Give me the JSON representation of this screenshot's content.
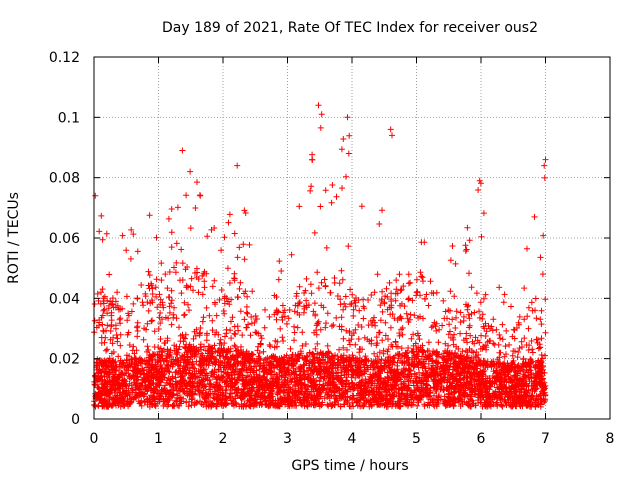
{
  "chart_data": {
    "type": "scatter",
    "title": "Day 189 of 2021, Rate Of TEC Index for receiver ous2",
    "xlabel": "GPS time / hours",
    "ylabel": "ROTI / TECUs",
    "xlim": [
      0,
      8
    ],
    "ylim": [
      0,
      0.12
    ],
    "x_ticks": [
      "0",
      "1",
      "2",
      "3",
      "4",
      "5",
      "6",
      "7",
      "8"
    ],
    "y_ticks": [
      "0",
      "0.02",
      "0.04",
      "0.06",
      "0.08",
      "0.1",
      "0.12"
    ],
    "grid": true,
    "marker": "+",
    "color": "#ff0000",
    "data_extent_x": [
      0,
      7.0
    ],
    "density_profile": [
      {
        "x": 0.0,
        "base": 0.012,
        "spread": 0.03,
        "max": 0.074
      },
      {
        "x": 0.5,
        "base": 0.012,
        "spread": 0.02,
        "max": 0.065
      },
      {
        "x": 1.0,
        "base": 0.014,
        "spread": 0.03,
        "max": 0.071
      },
      {
        "x": 1.4,
        "base": 0.016,
        "spread": 0.035,
        "max": 0.089
      },
      {
        "x": 2.0,
        "base": 0.015,
        "spread": 0.025,
        "max": 0.062
      },
      {
        "x": 2.2,
        "base": 0.015,
        "spread": 0.03,
        "max": 0.084
      },
      {
        "x": 2.6,
        "base": 0.013,
        "spread": 0.015,
        "max": 0.045
      },
      {
        "x": 3.0,
        "base": 0.013,
        "spread": 0.022,
        "max": 0.06
      },
      {
        "x": 3.3,
        "base": 0.014,
        "spread": 0.03,
        "max": 0.087
      },
      {
        "x": 3.5,
        "base": 0.014,
        "spread": 0.035,
        "max": 0.104
      },
      {
        "x": 3.9,
        "base": 0.013,
        "spread": 0.03,
        "max": 0.1
      },
      {
        "x": 4.4,
        "base": 0.012,
        "spread": 0.025,
        "max": 0.08
      },
      {
        "x": 4.6,
        "base": 0.013,
        "spread": 0.03,
        "max": 0.096
      },
      {
        "x": 5.0,
        "base": 0.015,
        "spread": 0.03,
        "max": 0.064
      },
      {
        "x": 5.5,
        "base": 0.014,
        "spread": 0.025,
        "max": 0.055
      },
      {
        "x": 6.0,
        "base": 0.012,
        "spread": 0.02,
        "max": 0.079
      },
      {
        "x": 6.5,
        "base": 0.011,
        "spread": 0.015,
        "max": 0.035
      },
      {
        "x": 7.0,
        "base": 0.012,
        "spread": 0.03,
        "max": 0.086
      }
    ]
  }
}
